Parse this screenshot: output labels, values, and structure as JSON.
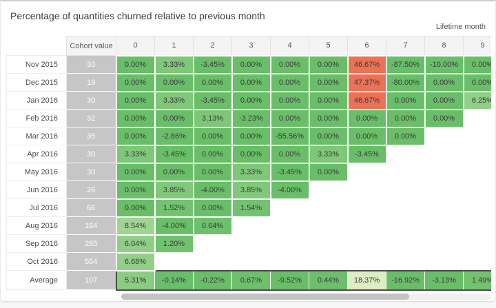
{
  "title": "Percentage of quantities churned relative to previous month",
  "lifetime_label": "Lifetime month",
  "chart_data": {
    "type": "heatmap",
    "title": "Percentage of quantities churned relative to previous month",
    "x_axis_label": "Lifetime month",
    "cohort_header": "Cohort value",
    "columns": [
      "0",
      "1",
      "2",
      "3",
      "4",
      "5",
      "6",
      "7",
      "8",
      "9"
    ],
    "value_format": "percent_2_decimals",
    "rows": [
      {
        "label": "Nov 2015",
        "cohort_value": "30",
        "churn_pct": [
          0.0,
          3.33,
          -3.45,
          0.0,
          0.0,
          0.0,
          46.67,
          -87.5,
          -10.0,
          0.0
        ]
      },
      {
        "label": "Dec 2015",
        "cohort_value": "19",
        "churn_pct": [
          0.0,
          0.0,
          0.0,
          0.0,
          0.0,
          0.0,
          47.37,
          -80.0,
          0.0,
          0.0
        ]
      },
      {
        "label": "Jan 2016",
        "cohort_value": "30",
        "churn_pct": [
          0.0,
          3.33,
          -3.45,
          0.0,
          0.0,
          0.0,
          46.67,
          0.0,
          0.0,
          6.25
        ]
      },
      {
        "label": "Feb 2016",
        "cohort_value": "32",
        "churn_pct": [
          0.0,
          0.0,
          3.13,
          -3.23,
          0.0,
          0.0,
          0.0,
          0.0,
          0.0
        ]
      },
      {
        "label": "Mar 2016",
        "cohort_value": "35",
        "churn_pct": [
          0.0,
          -2.86,
          0.0,
          0.0,
          -55.56,
          0.0,
          0.0,
          0.0
        ]
      },
      {
        "label": "Apr 2016",
        "cohort_value": "30",
        "churn_pct": [
          3.33,
          -3.45,
          0.0,
          0.0,
          0.0,
          3.33,
          -3.45
        ]
      },
      {
        "label": "May 2016",
        "cohort_value": "30",
        "churn_pct": [
          0.0,
          0.0,
          0.0,
          3.33,
          -3.45,
          0.0
        ]
      },
      {
        "label": "Jun 2016",
        "cohort_value": "26",
        "churn_pct": [
          0.0,
          3.85,
          -4.0,
          3.85,
          -4.0
        ]
      },
      {
        "label": "Jul 2016",
        "cohort_value": "66",
        "churn_pct": [
          0.0,
          1.52,
          0.0,
          1.54
        ]
      },
      {
        "label": "Aug 2016",
        "cohort_value": "164",
        "churn_pct": [
          8.54,
          -4.0,
          0.64
        ]
      },
      {
        "label": "Sep 2016",
        "cohort_value": "265",
        "churn_pct": [
          6.04,
          1.2
        ]
      },
      {
        "label": "Oct 2016",
        "cohort_value": "554",
        "churn_pct": [
          6.68
        ]
      }
    ],
    "average": {
      "label": "Average",
      "cohort_value": "107",
      "churn_pct": [
        5.31,
        -0.14,
        -0.22,
        0.67,
        -9.52,
        0.44,
        18.37,
        -16.92,
        -3.13,
        1.49
      ]
    },
    "color_scale": {
      "zero_or_negative": "#6abe69",
      "mid": "#dfeec5",
      "high": "#ea7257",
      "high_at": 46.67,
      "mid_fraction": 0.4
    }
  }
}
